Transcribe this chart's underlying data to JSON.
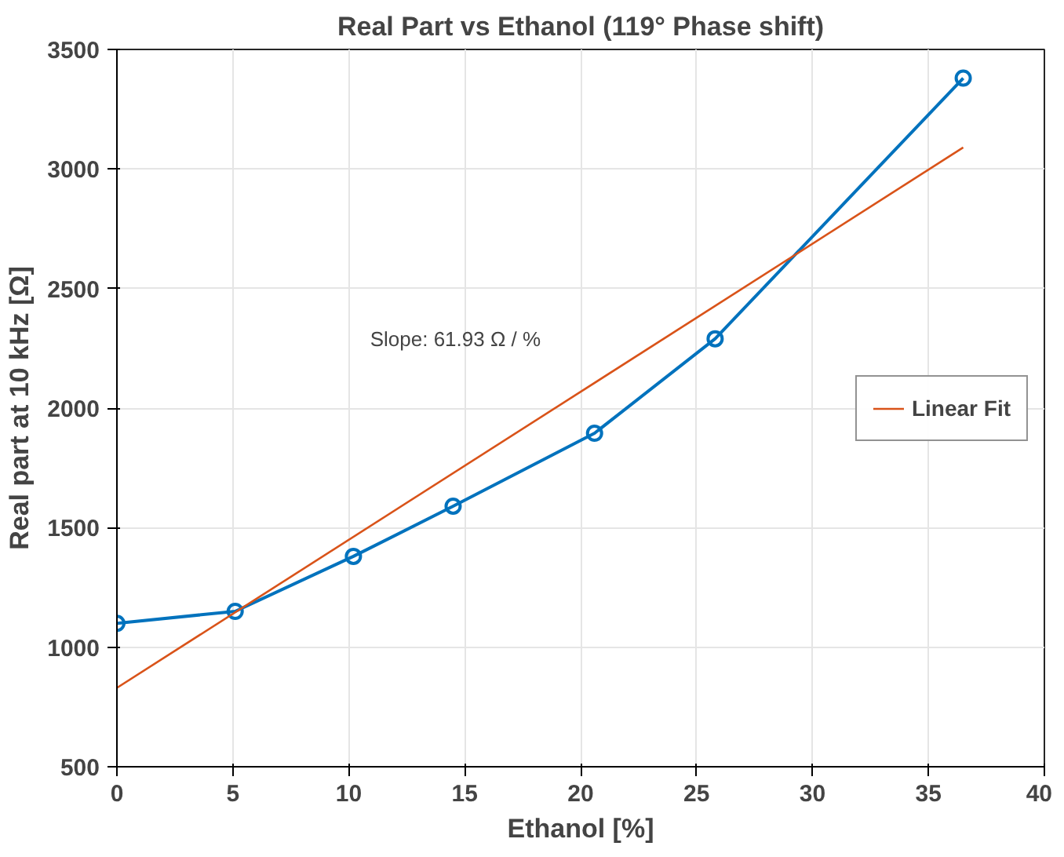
{
  "chart_data": {
    "type": "line",
    "title": "Real Part vs Ethanol (119° Phase shift)",
    "xlabel": "Ethanol [%]",
    "ylabel": "Real part at 10 kHz [Ω]",
    "annotations": [
      "Slope: 61.93 Ω / %"
    ],
    "series": [
      {
        "color": "#0072bd",
        "marker": "circle",
        "x": [
          0,
          5.1,
          10.2,
          14.5,
          20.6,
          25.8,
          36.5
        ],
        "values": [
          1100,
          1150,
          1380,
          1590,
          1895,
          2290,
          3380
        ]
      },
      {
        "name": "Linear Fit",
        "color": "#d95319",
        "marker": "none",
        "x": [
          0,
          36.5
        ],
        "values": [
          830,
          3090
        ]
      }
    ],
    "xlim": [
      0,
      40
    ],
    "xticks": [
      0,
      5,
      10,
      15,
      20,
      25,
      30,
      35,
      40
    ],
    "ylim": [
      500,
      3500
    ],
    "yticks": [
      500,
      1000,
      1500,
      2000,
      2500,
      3000,
      3500
    ],
    "grid": true,
    "legend": "right"
  }
}
